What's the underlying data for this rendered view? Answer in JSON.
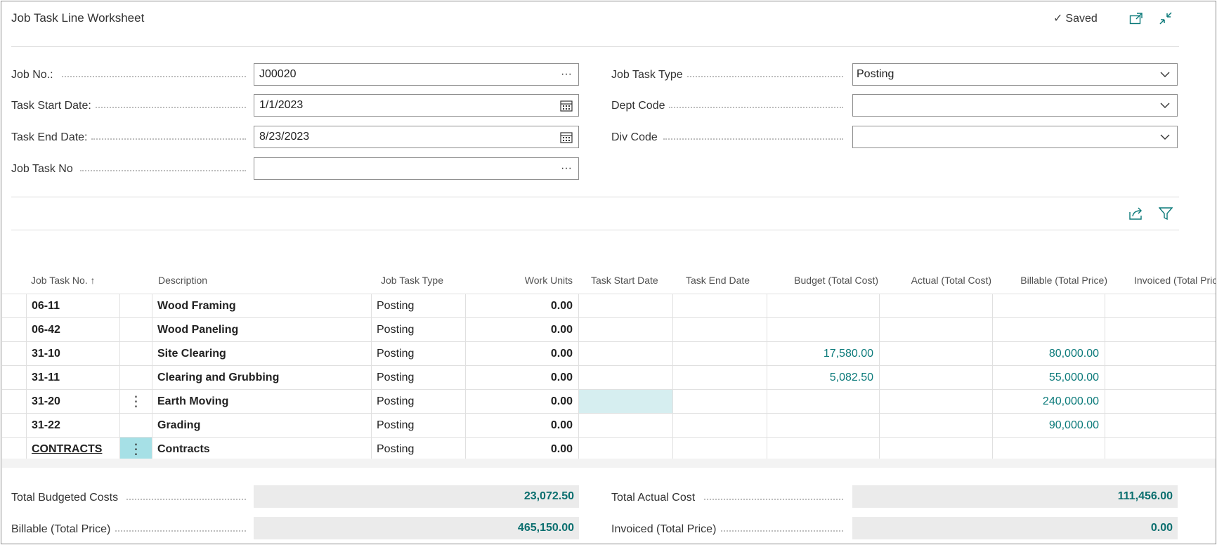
{
  "header": {
    "title": "Job Task Line Worksheet",
    "saved_label": "Saved"
  },
  "form": {
    "job_no": {
      "label": "Job No.:",
      "value": "J00020"
    },
    "task_start_date": {
      "label": "Task Start Date:",
      "value": "1/1/2023"
    },
    "task_end_date": {
      "label": "Task End Date:",
      "value": "8/23/2023"
    },
    "job_task_no": {
      "label": "Job Task No",
      "value": ""
    },
    "job_task_type": {
      "label": "Job Task Type",
      "value": "Posting"
    },
    "dept_code": {
      "label": "Dept Code",
      "value": ""
    },
    "div_code": {
      "label": "Div Code",
      "value": ""
    }
  },
  "grid": {
    "columns": {
      "job_task_no": "Job Task No. ↑",
      "description": "Description",
      "job_task_type": "Job Task Type",
      "work_units": "Work Units",
      "task_start_date": "Task Start Date",
      "task_end_date": "Task End Date",
      "budget_total_cost": "Budget (Total Cost)",
      "actual_total_cost": "Actual (Total Cost)",
      "billable_total_price": "Billable (Total Price)",
      "invoiced_total_price": "Invoiced (Total Price"
    },
    "rows": [
      {
        "no": "06-11",
        "description": "Wood Framing",
        "type": "Posting",
        "work_units": "0.00",
        "budget": "",
        "actual": "",
        "billable": "",
        "invoiced": ""
      },
      {
        "no": "06-42",
        "description": "Wood Paneling",
        "type": "Posting",
        "work_units": "0.00",
        "budget": "",
        "actual": "",
        "billable": "",
        "invoiced": ""
      },
      {
        "no": "31-10",
        "description": "Site Clearing",
        "type": "Posting",
        "work_units": "0.00",
        "budget": "17,580.00",
        "actual": "",
        "billable": "80,000.00",
        "invoiced": ""
      },
      {
        "no": "31-11",
        "description": "Clearing and Grubbing",
        "type": "Posting",
        "work_units": "0.00",
        "budget": "5,082.50",
        "actual": "",
        "billable": "55,000.00",
        "invoiced": ""
      },
      {
        "no": "31-20",
        "description": "Earth Moving",
        "type": "Posting",
        "work_units": "0.00",
        "budget": "",
        "actual": "",
        "billable": "240,000.00",
        "invoiced": ""
      },
      {
        "no": "31-22",
        "description": "Grading",
        "type": "Posting",
        "work_units": "0.00",
        "budget": "",
        "actual": "",
        "billable": "90,000.00",
        "invoiced": ""
      },
      {
        "no": "CONTRACTS",
        "description": "Contracts",
        "type": "Posting",
        "work_units": "0.00",
        "budget": "",
        "actual": "",
        "billable": "",
        "invoiced": ""
      }
    ]
  },
  "totals": {
    "total_budgeted_costs": {
      "label": "Total Budgeted Costs",
      "value": "23,072.50"
    },
    "billable_total_price": {
      "label": "Billable (Total Price)",
      "value": "465,150.00"
    },
    "total_actual_cost": {
      "label": "Total Actual Cost",
      "value": "111,456.00"
    },
    "invoiced_total_price": {
      "label": "Invoiced (Total Price)",
      "value": "0.00"
    }
  },
  "icons": {
    "saved": "checkmark-icon",
    "open_new_window": "open-in-new-window-icon",
    "collapse": "collapse-icon",
    "share": "share-icon",
    "filter": "filter-icon",
    "lookup": "ellipsis-icon",
    "calendar": "calendar-icon",
    "dropdown": "chevron-down-icon",
    "row_menu": "vertical-ellipsis-icon"
  },
  "colors": {
    "accent": "#0b7a7a",
    "selected_cell": "#d6eef0",
    "row_menu_selected": "#a6e0e6",
    "total_bg": "#ebebeb"
  }
}
